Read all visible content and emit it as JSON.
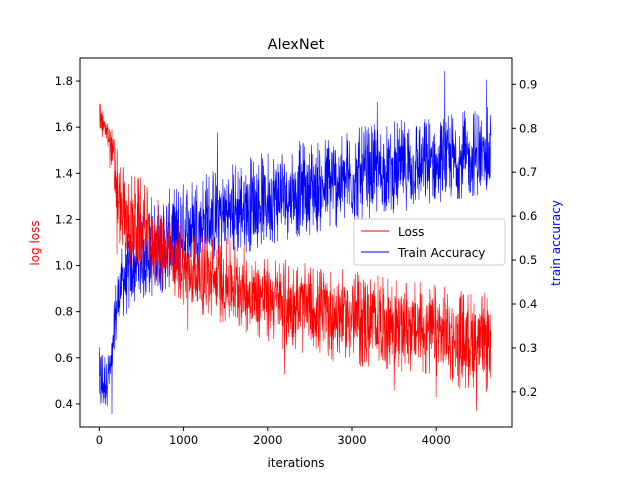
{
  "chart_data": {
    "type": "line",
    "title": "AlexNet",
    "xlabel": "iterations",
    "ylabel_left": "log loss",
    "ylabel_right": "train accuracy",
    "xlim": [
      -230,
      4900
    ],
    "ylim_left": [
      0.3,
      1.9
    ],
    "ylim_right": [
      0.12,
      0.96
    ],
    "x_ticks": [
      0,
      1000,
      2000,
      3000,
      4000
    ],
    "y_ticks_left": [
      0.4,
      0.6,
      0.8,
      1.0,
      1.2,
      1.4,
      1.6,
      1.8
    ],
    "y_ticks_right": [
      0.2,
      0.3,
      0.4,
      0.5,
      0.6,
      0.7,
      0.8,
      0.9
    ],
    "grid": false,
    "legend_position": "right",
    "series": [
      {
        "name": "Loss",
        "axis": "left",
        "color": "#ff0000",
        "x": [
          0,
          20,
          50,
          100,
          150,
          200,
          250,
          300,
          400,
          500,
          600,
          800,
          1000,
          1200,
          1500,
          1800,
          2000,
          2300,
          2600,
          3000,
          3300,
          3600,
          4000,
          4300,
          4650
        ],
        "values": [
          1.7,
          1.62,
          1.6,
          1.58,
          1.5,
          1.35,
          1.22,
          1.18,
          1.15,
          1.13,
          1.1,
          1.05,
          0.98,
          0.95,
          0.92,
          0.88,
          0.86,
          0.83,
          0.8,
          0.78,
          0.76,
          0.74,
          0.71,
          0.68,
          0.66
        ],
        "band_low": [
          1.58,
          1.56,
          1.55,
          1.5,
          1.35,
          1.15,
          1.05,
          1.0,
          0.98,
          0.95,
          0.92,
          0.88,
          0.83,
          0.78,
          0.74,
          0.7,
          0.66,
          0.62,
          0.6,
          0.56,
          0.54,
          0.52,
          0.5,
          0.46,
          0.44
        ],
        "band_high": [
          1.82,
          1.7,
          1.66,
          1.62,
          1.6,
          1.58,
          1.45,
          1.42,
          1.4,
          1.38,
          1.32,
          1.25,
          1.18,
          1.15,
          1.12,
          1.08,
          1.05,
          1.02,
          1.0,
          0.98,
          0.96,
          0.94,
          0.92,
          0.9,
          0.88
        ],
        "extremes": [
          {
            "x": 210,
            "values": 1.05
          },
          {
            "x": 1050,
            "values": 0.72
          },
          {
            "x": 2200,
            "values": 0.53
          },
          {
            "x": 3500,
            "values": 0.46
          },
          {
            "x": 4000,
            "values": 0.43
          },
          {
            "x": 4480,
            "values": 0.37
          }
        ]
      },
      {
        "name": "Train Accuracy",
        "axis": "right",
        "color": "#0000ff",
        "x": [
          0,
          20,
          50,
          100,
          150,
          200,
          250,
          300,
          400,
          500,
          600,
          800,
          1000,
          1200,
          1500,
          1800,
          2000,
          2300,
          2600,
          3000,
          3300,
          3600,
          4000,
          4300,
          4650
        ],
        "values": [
          0.2,
          0.2,
          0.22,
          0.23,
          0.27,
          0.38,
          0.44,
          0.46,
          0.48,
          0.5,
          0.51,
          0.53,
          0.56,
          0.58,
          0.6,
          0.62,
          0.63,
          0.65,
          0.66,
          0.68,
          0.69,
          0.7,
          0.71,
          0.72,
          0.73
        ],
        "band_low": [
          0.15,
          0.14,
          0.15,
          0.17,
          0.2,
          0.3,
          0.36,
          0.37,
          0.38,
          0.4,
          0.41,
          0.43,
          0.46,
          0.48,
          0.5,
          0.52,
          0.53,
          0.55,
          0.56,
          0.58,
          0.6,
          0.61,
          0.63,
          0.64,
          0.65
        ],
        "band_high": [
          0.3,
          0.31,
          0.3,
          0.3,
          0.33,
          0.47,
          0.52,
          0.55,
          0.58,
          0.6,
          0.62,
          0.66,
          0.68,
          0.7,
          0.72,
          0.74,
          0.75,
          0.77,
          0.78,
          0.8,
          0.81,
          0.82,
          0.83,
          0.84,
          0.85
        ],
        "extremes": [
          {
            "x": 150,
            "values": 0.15
          },
          {
            "x": 1400,
            "values": 0.79
          },
          {
            "x": 3300,
            "values": 0.86
          },
          {
            "x": 4100,
            "values": 0.93
          },
          {
            "x": 4600,
            "values": 0.91
          }
        ]
      }
    ]
  }
}
